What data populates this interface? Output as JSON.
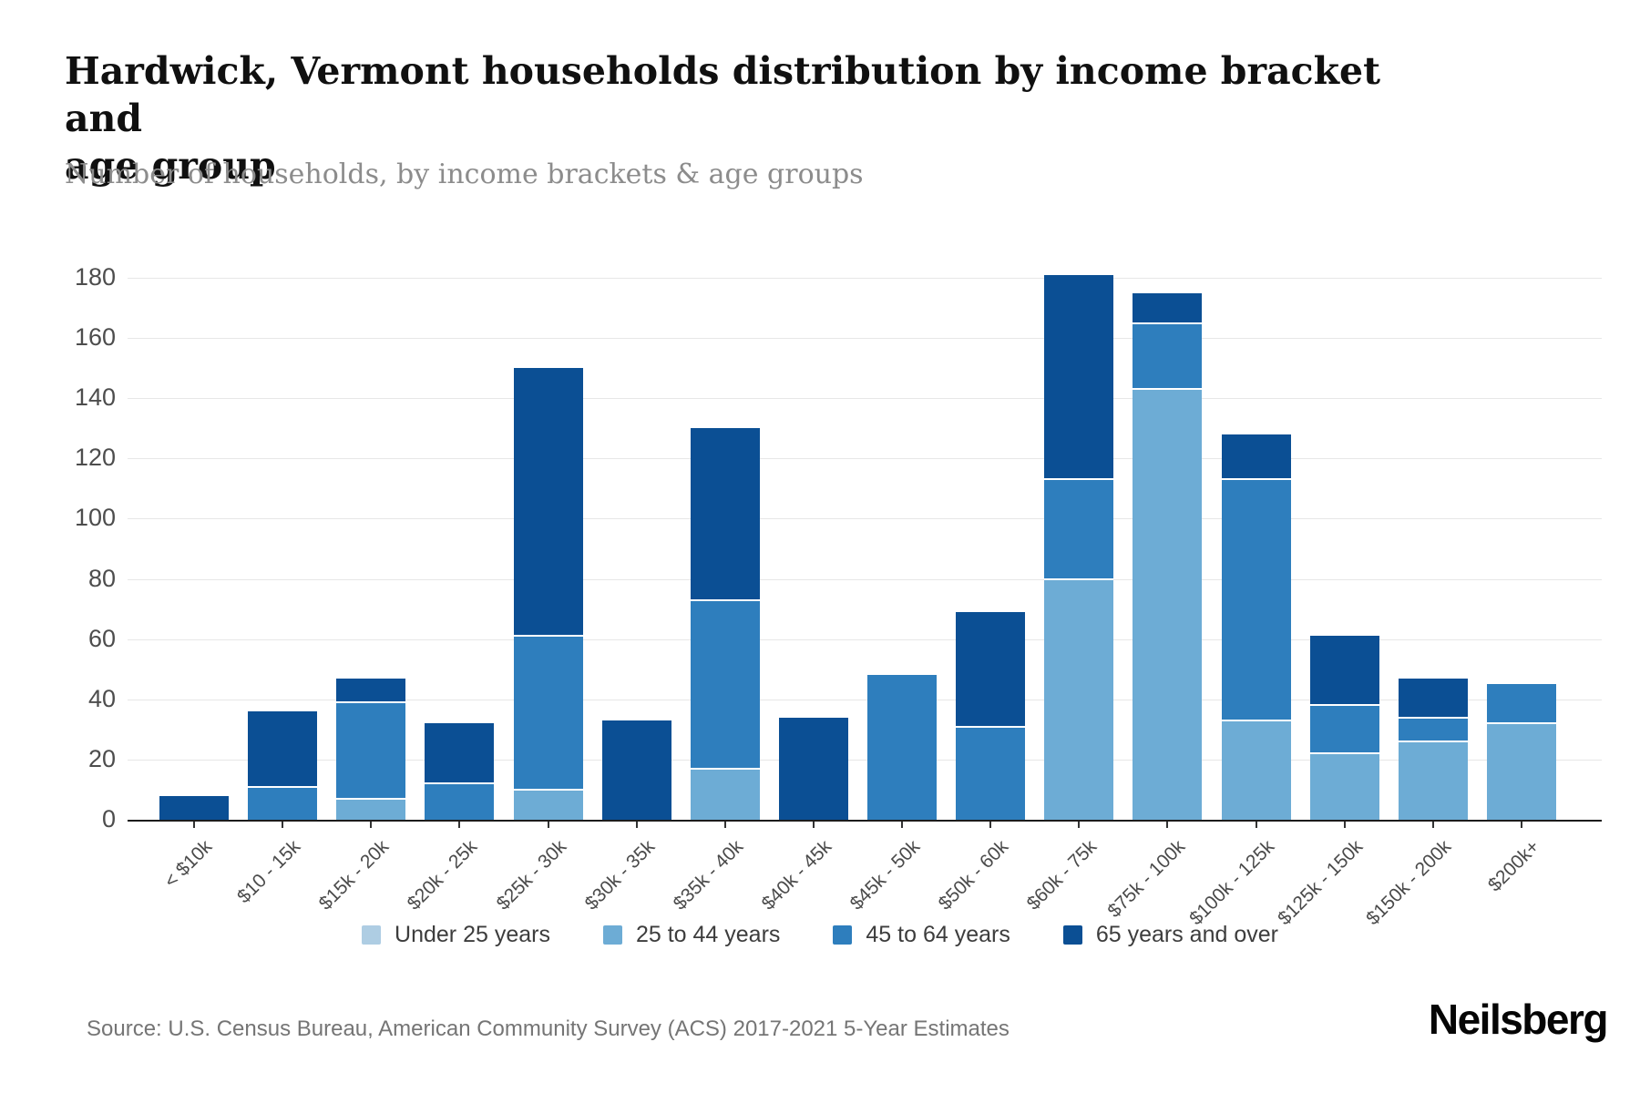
{
  "header": {
    "title_line1": "Hardwick, Vermont households distribution by income bracket and",
    "title_line2": "age group",
    "subtitle": "Number of households, by income brackets & age groups"
  },
  "source": {
    "text": "Source: U.S. Census Bureau, American Community Survey (ACS) 2017-2021 5-Year Estimates"
  },
  "brand": {
    "text": "Neilsberg"
  },
  "chart_data": {
    "type": "stacked_bar",
    "title": "Hardwick, Vermont households distribution by income bracket and age group",
    "subtitle": "Number of households, by income brackets & age groups",
    "categories": [
      "< $10k",
      "$10 - 15k",
      "$15k - 20k",
      "$20k - 25k",
      "$25k - 30k",
      "$30k - 35k",
      "$35k - 40k",
      "$40k - 45k",
      "$45k - 50k",
      "$50k - 60k",
      "$60k - 75k",
      "$75k - 100k",
      "$100k - 125k",
      "$125k - 150k",
      "$150k - 200k",
      "$200k+"
    ],
    "series": [
      {
        "name": "Under 25 years",
        "color": "#aecde3",
        "values": [
          0,
          0,
          0,
          0,
          0,
          0,
          0,
          0,
          0,
          0,
          0,
          0,
          0,
          0,
          0,
          0
        ]
      },
      {
        "name": "25 to 44 years",
        "color": "#6dacd5",
        "values": [
          0,
          0,
          7,
          0,
          10,
          0,
          17,
          0,
          0,
          0,
          80,
          143,
          33,
          22,
          26,
          32
        ]
      },
      {
        "name": "45 to 64 years",
        "color": "#2e7ebd",
        "values": [
          0,
          11,
          32,
          12,
          51,
          0,
          56,
          0,
          48,
          31,
          33,
          22,
          80,
          16,
          8,
          13
        ]
      },
      {
        "name": "65 years and over",
        "color": "#0b4f94",
        "values": [
          8,
          25,
          8,
          20,
          89,
          33,
          57,
          34,
          0,
          38,
          68,
          10,
          15,
          23,
          13,
          0
        ]
      }
    ],
    "totals": [
      8,
      36,
      47,
      32,
      150,
      33,
      130,
      34,
      48,
      69,
      181,
      175,
      128,
      61,
      47,
      45
    ],
    "ylim": [
      0,
      180
    ],
    "yticks": [
      0,
      20,
      40,
      60,
      80,
      100,
      120,
      140,
      160,
      180
    ],
    "grid": "horizontal",
    "legend_position": "bottom",
    "axis_color": "#1c1c1c",
    "gridline_color": "#e7e7e7"
  }
}
